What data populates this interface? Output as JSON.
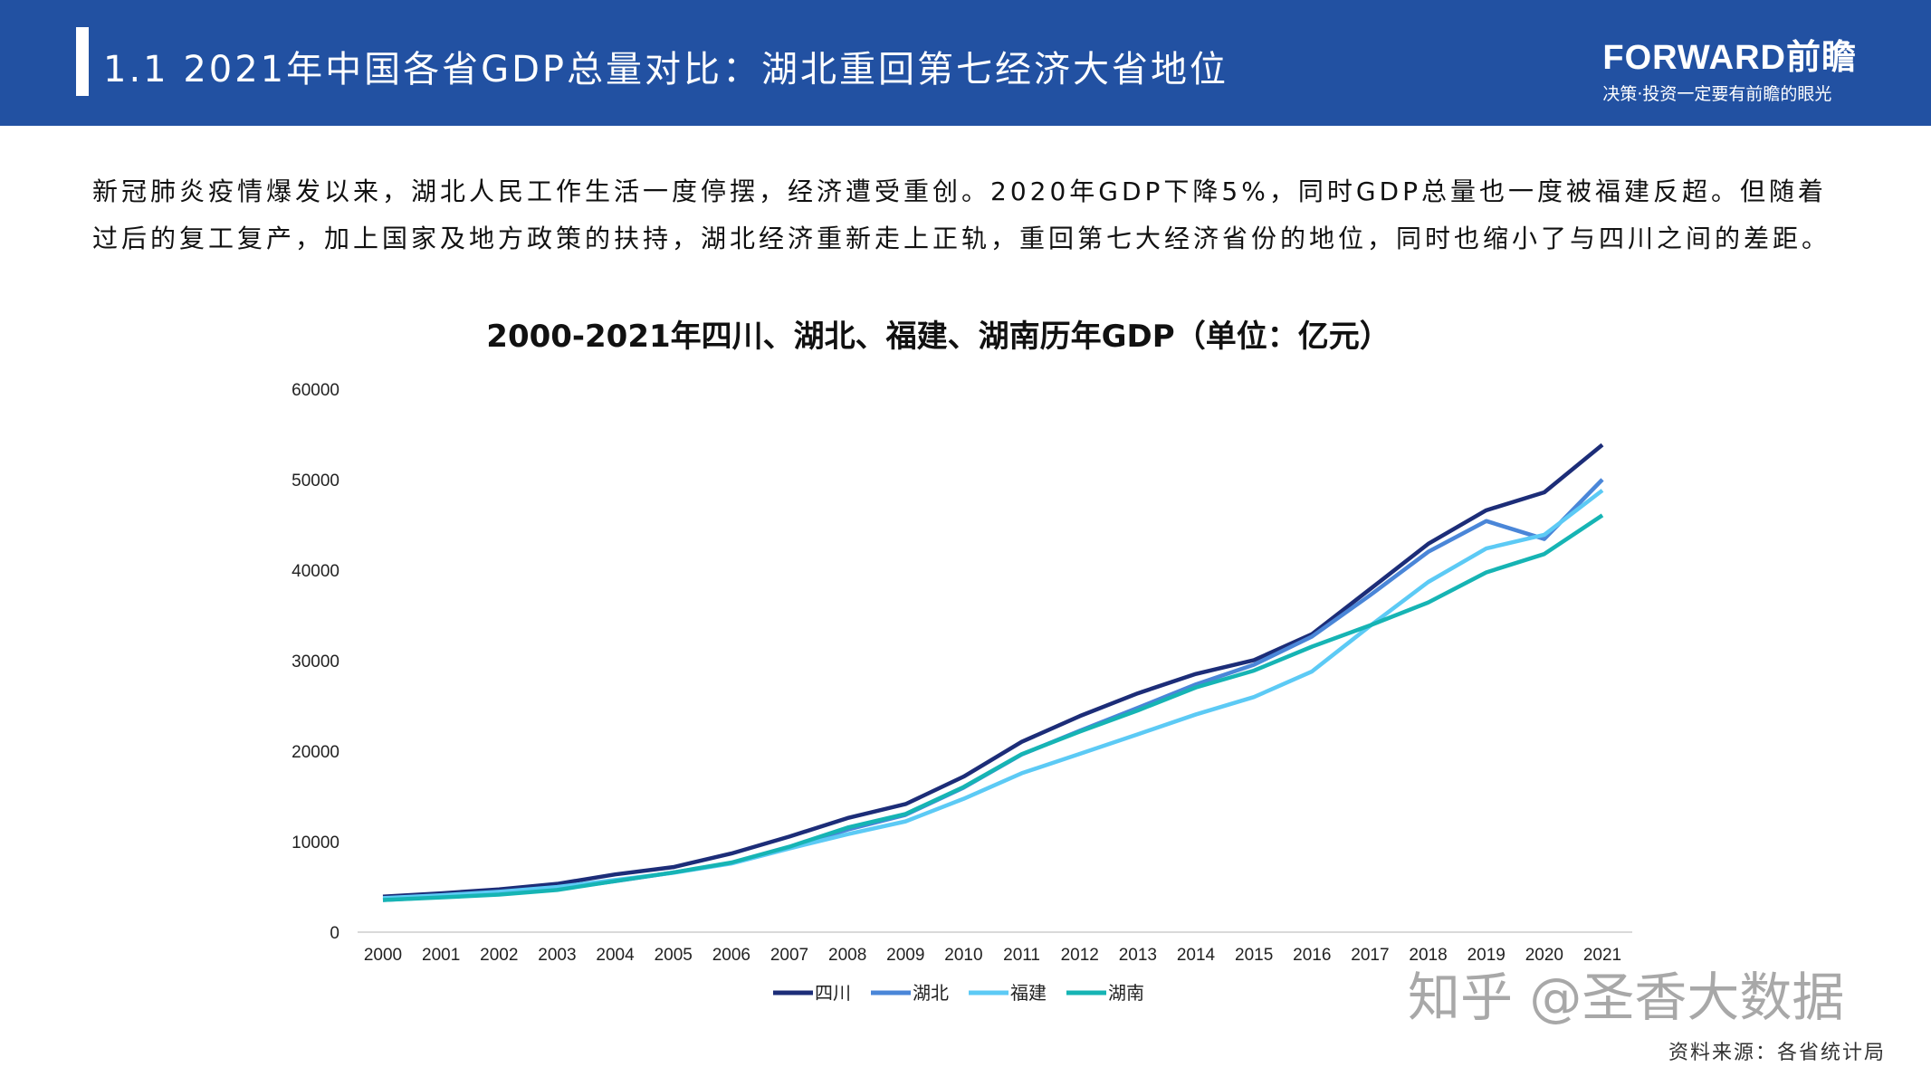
{
  "header": {
    "title": "1.1 2021年中国各省GDP总量对比：湖北重回第七经济大省地位",
    "logo_brand": "FORWARD前瞻",
    "logo_slogan": "决策·投资一定要有前瞻的眼光"
  },
  "paragraph": "新冠肺炎疫情爆发以来，湖北人民工作生活一度停摆，经济遭受重创。2020年GDP下降5%，同时GDP总量也一度被福建反超。但随着过后的复工复产，加上国家及地方政策的扶持，湖北经济重新走上正轨，重回第七大经济省份的地位，同时也缩小了与四川之间的差距。",
  "chart_data": {
    "type": "line",
    "title": "2000-2021年四川、湖北、福建、湖南历年GDP（单位：亿元）",
    "xlabel": "",
    "ylabel": "",
    "ylim": [
      0,
      60000
    ],
    "yticks": [
      "0",
      "10000",
      "20000",
      "30000",
      "40000",
      "50000",
      "60000"
    ],
    "grid": false,
    "legend": "bottom",
    "categories": [
      "2000",
      "2001",
      "2002",
      "2003",
      "2004",
      "2005",
      "2006",
      "2007",
      "2008",
      "2009",
      "2010",
      "2011",
      "2012",
      "2013",
      "2014",
      "2015",
      "2016",
      "2017",
      "2018",
      "2019",
      "2020",
      "2021"
    ],
    "series": [
      {
        "name": "四川",
        "color": "#1c2d78",
        "values": [
          3928,
          4293,
          4725,
          5333,
          6380,
          7186,
          8690,
          10562,
          12601,
          14151,
          17185,
          21027,
          23873,
          26392,
          28537,
          30053,
          32935,
          37905,
          42902,
          46616,
          48599,
          53851
        ]
      },
      {
        "name": "湖北",
        "color": "#4a86d8",
        "values": [
          3545,
          3881,
          4213,
          4758,
          5633,
          6590,
          7617,
          9333,
          11329,
          12961,
          15968,
          19632,
          22250,
          24792,
          27379,
          29550,
          32665,
          37235,
          42022,
          45429,
          43443,
          50013
        ]
      },
      {
        "name": "福建",
        "color": "#5ccaf5",
        "values": [
          3765,
          4073,
          4468,
          4984,
          5763,
          6555,
          7584,
          9249,
          10823,
          12237,
          14737,
          17560,
          19702,
          21868,
          24056,
          25980,
          28811,
          33842,
          38688,
          42395,
          43904,
          48810
        ]
      },
      {
        "name": "湖南",
        "color": "#16b4b4",
        "values": [
          3551,
          3832,
          4152,
          4660,
          5642,
          6596,
          7689,
          9440,
          11555,
          13060,
          16038,
          19670,
          22154,
          24502,
          27037,
          28902,
          31551,
          33903,
          36426,
          39752,
          41782,
          46063
        ]
      }
    ]
  },
  "watermark": "知乎 @圣香大数据",
  "source": "资料来源：各省统计局"
}
